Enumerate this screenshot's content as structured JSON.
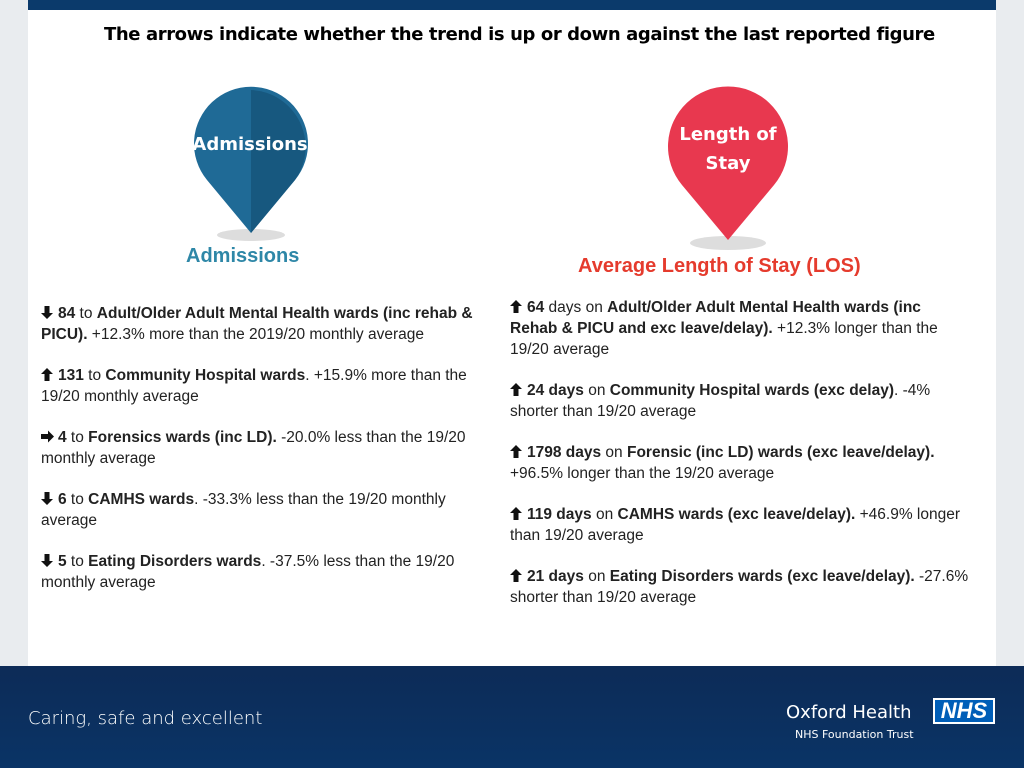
{
  "header": {
    "title": "The arrows indicate whether the trend is up or down against the last reported figure"
  },
  "admissions": {
    "icon_label": "Admissions",
    "heading": "Admissions",
    "items": [
      {
        "arrow": "down",
        "parts": [
          {
            "t": "84",
            "b": true
          },
          {
            "t": " to ",
            "b": false
          },
          {
            "t": "Adult/Older Adult Mental Health wards (inc rehab & PICU).",
            "b": true
          },
          {
            "t": "  +12.3% more than the 2019/20 monthly average",
            "b": false
          }
        ]
      },
      {
        "arrow": "up",
        "parts": [
          {
            "t": "131",
            "b": true
          },
          {
            "t": " to ",
            "b": false
          },
          {
            "t": "Community Hospital wards",
            "b": true
          },
          {
            "t": ". +15.9% more than the 19/20 monthly average",
            "b": false
          }
        ]
      },
      {
        "arrow": "right",
        "parts": [
          {
            "t": "4",
            "b": true
          },
          {
            "t": " to ",
            "b": false
          },
          {
            "t": "Forensics wards (inc LD).",
            "b": true
          },
          {
            "t": "  -20.0% less than the 19/20 monthly average",
            "b": false
          }
        ]
      },
      {
        "arrow": "down",
        "parts": [
          {
            "t": "6",
            "b": true
          },
          {
            "t": "  to ",
            "b": false
          },
          {
            "t": "CAMHS wards",
            "b": true
          },
          {
            "t": ". -33.3% less than the 19/20 monthly average",
            "b": false
          }
        ]
      },
      {
        "arrow": "down",
        "parts": [
          {
            "t": "5",
            "b": true
          },
          {
            "t": " to ",
            "b": false
          },
          {
            "t": "Eating Disorders wards",
            "b": true
          },
          {
            "t": ". -37.5% less than the 19/20 monthly average",
            "b": false
          }
        ]
      }
    ]
  },
  "los": {
    "icon_label": [
      "Length of",
      "Stay"
    ],
    "heading": "Average Length of Stay (LOS)",
    "items": [
      {
        "arrow": "up",
        "parts": [
          {
            "t": "64",
            "b": true
          },
          {
            "t": " days on ",
            "b": false
          },
          {
            "t": "Adult/Older Adult Mental Health wards (inc Rehab & PICU and exc leave/delay).",
            "b": true
          },
          {
            "t": " +12.3% longer than the 19/20 average",
            "b": false
          }
        ]
      },
      {
        "arrow": "up",
        "parts": [
          {
            "t": "24 days",
            "b": true
          },
          {
            "t": " on ",
            "b": false
          },
          {
            "t": "Community Hospital wards (exc delay)",
            "b": true
          },
          {
            "t": ". -4% shorter than 19/20 average",
            "b": false
          }
        ]
      },
      {
        "arrow": "up",
        "parts": [
          {
            "t": "1798 days",
            "b": true
          },
          {
            "t": " on ",
            "b": false
          },
          {
            "t": "Forensic (inc LD) wards (exc leave/delay).",
            "b": true
          },
          {
            "t": " +96.5% longer than the 19/20 average",
            "b": false
          }
        ]
      },
      {
        "arrow": "up",
        "parts": [
          {
            "t": "119 days",
            "b": true
          },
          {
            "t": " on ",
            "b": false
          },
          {
            "t": "CAMHS wards (exc leave/delay).",
            "b": true
          },
          {
            "t": " +46.9% longer than 19/20 average",
            "b": false
          }
        ]
      },
      {
        "arrow": "up",
        "parts": [
          {
            "t": "21 days",
            "b": true
          },
          {
            "t": " on ",
            "b": false
          },
          {
            "t": "Eating Disorders wards (exc leave/delay).",
            "b": true
          },
          {
            "t": " -27.6% shorter than 19/20 average",
            "b": false
          }
        ]
      }
    ]
  },
  "footer": {
    "tagline": "Caring, safe and excellent",
    "org": "Oxford Health",
    "sub": "NHS Foundation Trust",
    "logo": "NHS"
  }
}
